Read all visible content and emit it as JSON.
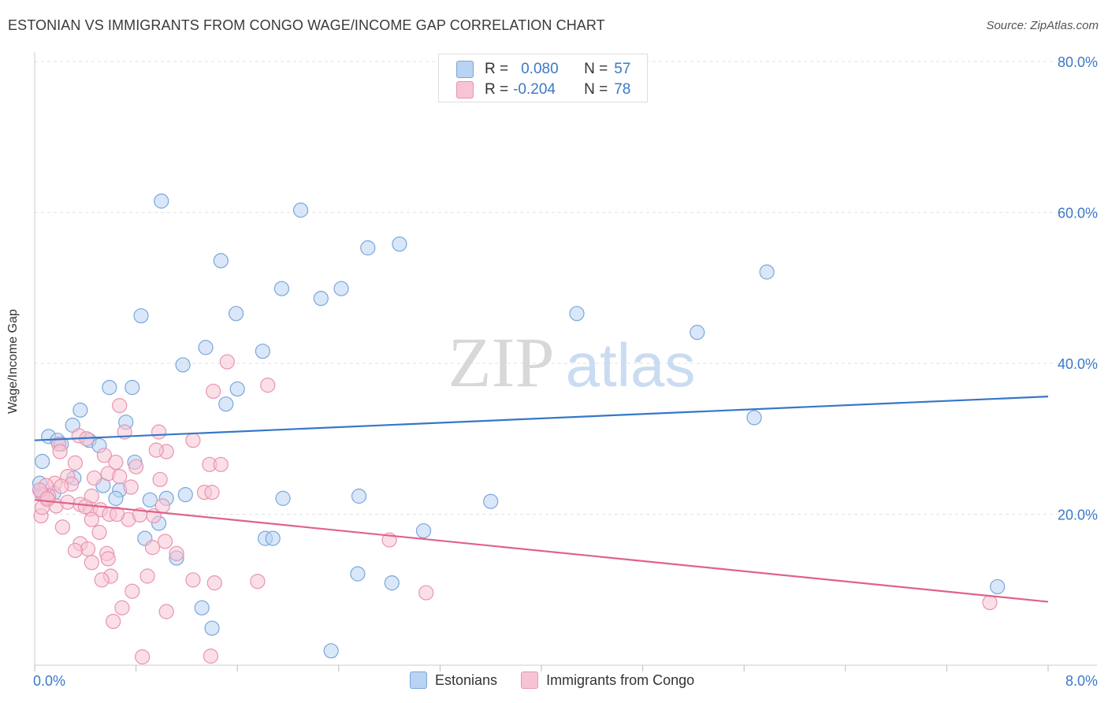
{
  "title": "ESTONIAN VS IMMIGRANTS FROM CONGO WAGE/INCOME GAP CORRELATION CHART",
  "source": "Source: ZipAtlas.com",
  "watermark": {
    "zip": "ZIP",
    "atlas": "atlas"
  },
  "legend": {
    "rows": [
      {
        "r_label": "R =",
        "r_value": "0.080",
        "n_label": "N =",
        "n_value": "57",
        "color": "#b9d3f3",
        "stroke": "#7aa6dc"
      },
      {
        "r_label": "R =",
        "r_value": "-0.204",
        "n_label": "N =",
        "n_value": "78",
        "color": "#f7c4d4",
        "stroke": "#e894b0"
      }
    ]
  },
  "bottom_legend": [
    {
      "label": "Estonians",
      "color": "#b9d3f3",
      "stroke": "#7aa6dc"
    },
    {
      "label": "Immigrants from Congo",
      "color": "#f7c4d4",
      "stroke": "#e894b0"
    }
  ],
  "chart_data": {
    "type": "scatter",
    "xlabel": "",
    "ylabel": "Wage/Income Gap",
    "xlim": [
      0,
      8
    ],
    "ylim": [
      0,
      80
    ],
    "x_tick_labels": [
      {
        "value": 0,
        "label": "0.0%"
      },
      {
        "value": 8,
        "label": "8.0%"
      }
    ],
    "y_tick_labels": [
      {
        "value": 20,
        "label": "20.0%"
      },
      {
        "value": 40,
        "label": "40.0%"
      },
      {
        "value": 60,
        "label": "60.0%"
      },
      {
        "value": 80,
        "label": "80.0%"
      }
    ],
    "grid": true,
    "series": [
      {
        "name": "Estonians",
        "color": "#7aa6dc",
        "fill": "#b9d3f3",
        "line_color": "#3677c9",
        "trend": [
          [
            0,
            29.8
          ],
          [
            8,
            35.6
          ]
        ],
        "points": [
          [
            1.0,
            61.5
          ],
          [
            2.1,
            60.3
          ],
          [
            2.88,
            55.8
          ],
          [
            2.63,
            55.3
          ],
          [
            5.78,
            52.1
          ],
          [
            1.47,
            53.6
          ],
          [
            1.95,
            49.9
          ],
          [
            2.26,
            48.6
          ],
          [
            2.42,
            49.9
          ],
          [
            1.59,
            46.6
          ],
          [
            0.84,
            46.3
          ],
          [
            4.28,
            46.6
          ],
          [
            5.23,
            44.1
          ],
          [
            1.35,
            42.1
          ],
          [
            1.8,
            41.6
          ],
          [
            1.17,
            39.8
          ],
          [
            0.59,
            36.8
          ],
          [
            0.77,
            36.8
          ],
          [
            1.6,
            36.6
          ],
          [
            1.51,
            34.6
          ],
          [
            0.36,
            33.8
          ],
          [
            5.68,
            32.8
          ],
          [
            0.72,
            32.2
          ],
          [
            0.3,
            31.8
          ],
          [
            0.11,
            30.3
          ],
          [
            0.18,
            29.8
          ],
          [
            0.43,
            29.8
          ],
          [
            0.21,
            29.3
          ],
          [
            0.51,
            29.1
          ],
          [
            0.06,
            27.0
          ],
          [
            0.79,
            26.9
          ],
          [
            0.31,
            24.8
          ],
          [
            0.54,
            23.8
          ],
          [
            0.67,
            23.2
          ],
          [
            1.19,
            22.6
          ],
          [
            0.64,
            22.1
          ],
          [
            0.91,
            21.9
          ],
          [
            1.04,
            22.1
          ],
          [
            1.96,
            22.1
          ],
          [
            2.56,
            22.4
          ],
          [
            3.6,
            21.7
          ],
          [
            0.98,
            18.8
          ],
          [
            3.07,
            17.8
          ],
          [
            0.87,
            16.8
          ],
          [
            1.82,
            16.8
          ],
          [
            1.88,
            16.8
          ],
          [
            1.12,
            14.2
          ],
          [
            2.55,
            12.1
          ],
          [
            2.82,
            10.9
          ],
          [
            1.32,
            7.6
          ],
          [
            1.4,
            4.9
          ],
          [
            2.34,
            1.9
          ],
          [
            7.6,
            10.4
          ],
          [
            0.05,
            23.0
          ],
          [
            0.08,
            22.5
          ],
          [
            0.04,
            24.1
          ],
          [
            0.15,
            22.8
          ]
        ]
      },
      {
        "name": "Immigrants from Congo",
        "color": "#e894b0",
        "fill": "#f7c4d4",
        "line_color": "#e0628c",
        "trend": [
          [
            0,
            21.9
          ],
          [
            8,
            8.4
          ]
        ],
        "points": [
          [
            1.52,
            40.2
          ],
          [
            1.84,
            37.1
          ],
          [
            1.41,
            36.3
          ],
          [
            0.67,
            34.4
          ],
          [
            0.71,
            30.9
          ],
          [
            0.98,
            30.9
          ],
          [
            0.35,
            30.4
          ],
          [
            0.41,
            30.0
          ],
          [
            1.25,
            29.8
          ],
          [
            0.19,
            29.3
          ],
          [
            0.2,
            28.3
          ],
          [
            1.04,
            28.3
          ],
          [
            0.55,
            27.8
          ],
          [
            0.96,
            28.5
          ],
          [
            0.32,
            26.8
          ],
          [
            0.64,
            26.9
          ],
          [
            1.38,
            26.6
          ],
          [
            1.47,
            26.6
          ],
          [
            0.8,
            26.3
          ],
          [
            0.58,
            25.4
          ],
          [
            0.67,
            25.0
          ],
          [
            0.26,
            25.0
          ],
          [
            0.47,
            24.8
          ],
          [
            0.99,
            24.6
          ],
          [
            0.76,
            23.6
          ],
          [
            0.16,
            24.1
          ],
          [
            0.09,
            23.8
          ],
          [
            0.29,
            24.0
          ],
          [
            0.21,
            23.7
          ],
          [
            1.34,
            22.9
          ],
          [
            1.4,
            22.9
          ],
          [
            0.45,
            22.4
          ],
          [
            0.11,
            22.4
          ],
          [
            0.06,
            22.6
          ],
          [
            0.1,
            21.9
          ],
          [
            0.17,
            21.1
          ],
          [
            0.26,
            21.6
          ],
          [
            0.36,
            21.3
          ],
          [
            0.44,
            20.7
          ],
          [
            0.52,
            20.6
          ],
          [
            0.59,
            20.0
          ],
          [
            0.94,
            19.8
          ],
          [
            0.05,
            19.8
          ],
          [
            0.45,
            19.3
          ],
          [
            0.74,
            19.3
          ],
          [
            0.22,
            18.3
          ],
          [
            0.51,
            17.6
          ],
          [
            1.03,
            16.4
          ],
          [
            0.36,
            16.1
          ],
          [
            0.42,
            15.4
          ],
          [
            0.57,
            14.8
          ],
          [
            1.12,
            14.8
          ],
          [
            0.93,
            15.6
          ],
          [
            0.45,
            13.6
          ],
          [
            0.58,
            14.1
          ],
          [
            0.6,
            11.8
          ],
          [
            0.53,
            11.3
          ],
          [
            0.89,
            11.8
          ],
          [
            1.25,
            11.3
          ],
          [
            1.42,
            10.9
          ],
          [
            1.76,
            11.1
          ],
          [
            0.77,
            9.8
          ],
          [
            2.8,
            16.6
          ],
          [
            3.09,
            9.6
          ],
          [
            0.69,
            7.6
          ],
          [
            1.04,
            7.1
          ],
          [
            0.62,
            5.8
          ],
          [
            0.85,
            1.1
          ],
          [
            1.39,
            1.2
          ],
          [
            7.54,
            8.3
          ],
          [
            0.06,
            20.9
          ],
          [
            0.04,
            23.2
          ],
          [
            0.32,
            15.2
          ],
          [
            0.1,
            22.1
          ],
          [
            1.01,
            21.1
          ],
          [
            0.83,
            19.9
          ],
          [
            0.65,
            20.0
          ],
          [
            0.4,
            21.0
          ]
        ]
      }
    ]
  }
}
